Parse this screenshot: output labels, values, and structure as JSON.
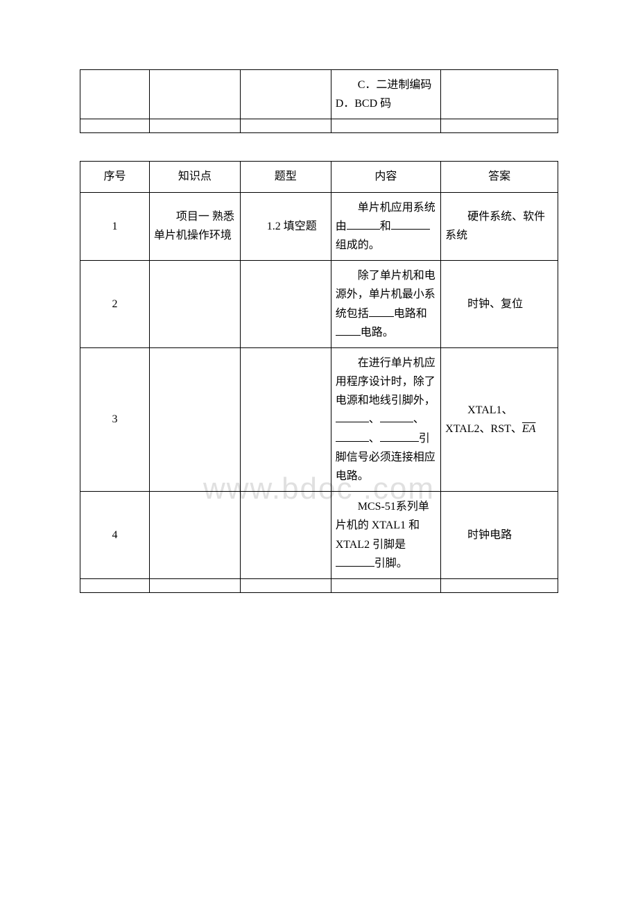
{
  "watermark": "www.bdoc .com",
  "table1": {
    "row1": {
      "col4": "　　C．二进制编码 D．BCD 码"
    }
  },
  "table2": {
    "header": {
      "col1": "序号",
      "col2": "知识点",
      "col3": "题型",
      "col4": "内容",
      "col5": "答案"
    },
    "rows": [
      {
        "num": "1",
        "kp": "　　项目一 熟悉单片机操作环境",
        "type": "　　1.2 填空题",
        "content_prefix": "　　单片机应用系统由",
        "content_mid": "和",
        "content_suffix": "组成的。",
        "answer": "　　硬件系统、软件系统"
      },
      {
        "num": "2",
        "content_prefix": "　　除了单片机和电源外，单片机最小系统包括",
        "content_mid": "电路和",
        "content_suffix": "电路。",
        "answer": "　　时钟、复位"
      },
      {
        "num": "3",
        "content_prefix": "　　在进行单片机应用程序设计时，除了电源和地线引脚外，",
        "content_sep1": "、",
        "content_sep2": "、",
        "content_sep3": "、",
        "content_suffix": "引脚信号必须连接相应电路。",
        "answer_prefix": "　　XTAL1、XTAL2、RST、",
        "answer_ea": "EA"
      },
      {
        "num": "4",
        "content_prefix": "　　MCS-51系列单片机的 XTAL1 和 XTAL2 引脚是",
        "content_suffix": "引脚。",
        "answer": "　　时钟电路"
      }
    ]
  }
}
